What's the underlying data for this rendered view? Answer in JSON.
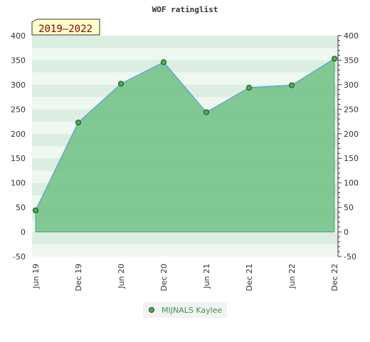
{
  "chart_data": {
    "type": "area",
    "title": "WOF ratinglist",
    "badge": "2019–2022",
    "categories": [
      "Jun 19",
      "Dec 19",
      "Jun 20",
      "Dec 20",
      "Jun 21",
      "Dec 21",
      "Jun 22",
      "Dec 22"
    ],
    "series": [
      {
        "name": "MIJNALS Kaylee",
        "values": [
          44,
          223,
          302,
          346,
          244,
          294,
          299,
          353
        ]
      }
    ],
    "ylim": [
      -50,
      400
    ],
    "yticks": [
      -50,
      0,
      50,
      100,
      150,
      200,
      250,
      300,
      350,
      400
    ],
    "grid": true,
    "legend": "bottom",
    "colors": {
      "area_fill": "#6fbf85",
      "line": "#5a9fd4",
      "marker": "#4caf50",
      "band_light": "#eef7f0",
      "band_dark": "#dceee2",
      "badge_bg": "#ffffcc"
    }
  }
}
